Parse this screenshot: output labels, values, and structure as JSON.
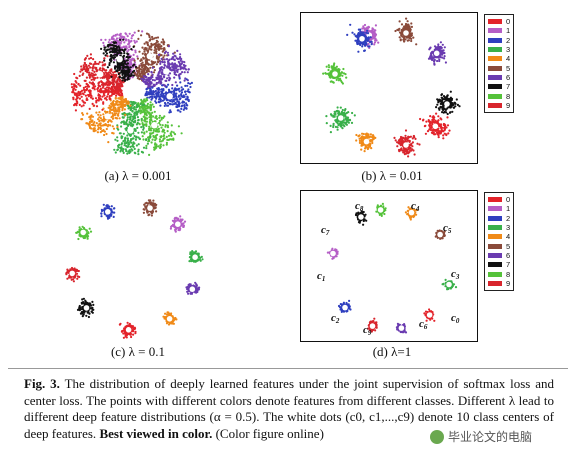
{
  "classes": [
    "0",
    "1",
    "2",
    "3",
    "4",
    "5",
    "6",
    "7",
    "8",
    "9"
  ],
  "colors": {
    "0": "#e3232a",
    "1": "#b55ec6",
    "2": "#2f3fbf",
    "3": "#39b04a",
    "4": "#f08a18",
    "5": "#8a4a3a",
    "6": "#6a3bb0",
    "7": "#111111",
    "8": "#55c23a",
    "9": "#d8252d"
  },
  "panels": [
    {
      "id": "a",
      "caption": "(a) λ = 0.001"
    },
    {
      "id": "b",
      "caption": "(b) λ = 0.01"
    },
    {
      "id": "c",
      "caption": "(c) λ = 0.1"
    },
    {
      "id": "d",
      "caption": "(d) λ=1"
    }
  ],
  "center_labels": [
    "c8",
    "c4",
    "c7",
    "c5",
    "c1",
    "c3",
    "c2",
    "c9",
    "c6",
    "c0"
  ],
  "figure_caption": {
    "label": "Fig. 3.",
    "text": "The distribution of deeply learned features under the joint supervision of softmax loss and center loss. The points with different colors denote features from different classes. Different λ lead to different deep feature distributions (α = 0.5). The white dots (c0, c1,...,c9) denote 10 class centers of deep features.",
    "bold": "Best viewed in color.",
    "tail": "(Color figure online)"
  },
  "watermark": "毕业论文的电脑"
}
